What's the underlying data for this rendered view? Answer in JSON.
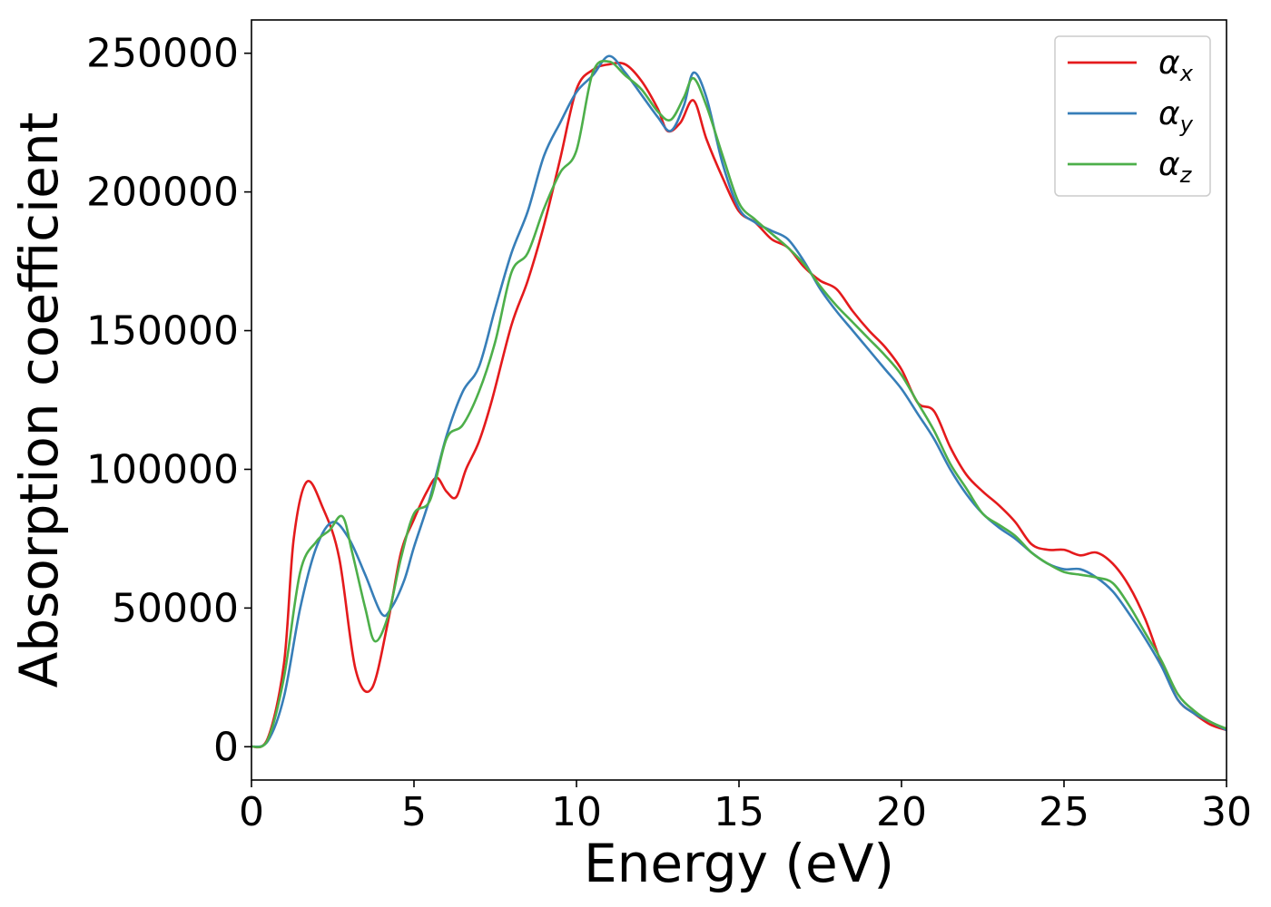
{
  "chart_data": {
    "type": "line",
    "title": "",
    "xlabel": "Energy (eV)",
    "ylabel": "Absorption coefficient",
    "xlim": [
      0,
      30
    ],
    "ylim": [
      -12000,
      262000
    ],
    "xticks": [
      0,
      5,
      10,
      15,
      20,
      25,
      30
    ],
    "yticks": [
      0,
      50000,
      100000,
      150000,
      200000,
      250000
    ],
    "grid": false,
    "legend_position": "top-right",
    "series": [
      {
        "name": "α",
        "subscript": "x",
        "color": "#e41a1c",
        "x": [
          0,
          0.5,
          1,
          1.3,
          1.7,
          2.2,
          2.7,
          3.2,
          3.7,
          4.2,
          4.6,
          5.0,
          5.4,
          5.7,
          6.0,
          6.3,
          6.6,
          7.0,
          7.4,
          8.0,
          8.5,
          9.0,
          9.5,
          10.0,
          10.5,
          11.0,
          11.5,
          12.0,
          12.5,
          12.8,
          13.2,
          13.6,
          14.0,
          14.5,
          15.0,
          15.5,
          16.0,
          16.5,
          17.0,
          17.5,
          18.0,
          18.5,
          19.0,
          19.5,
          20.0,
          20.5,
          21.0,
          21.5,
          22.0,
          22.5,
          23.0,
          23.5,
          24.0,
          24.5,
          25.0,
          25.5,
          26.0,
          26.5,
          27.0,
          27.5,
          28.0,
          28.5,
          29.0,
          29.5,
          30.0
        ],
        "values": [
          0,
          3000,
          30000,
          75000,
          95500,
          86000,
          68000,
          28000,
          21000,
          45000,
          70000,
          82000,
          92000,
          97000,
          92000,
          90000,
          100000,
          110000,
          125000,
          152000,
          168000,
          188000,
          212000,
          237000,
          244000,
          246000,
          246000,
          240000,
          230000,
          222000,
          225000,
          233000,
          219000,
          205000,
          193000,
          189000,
          183000,
          180000,
          173000,
          168000,
          165000,
          157000,
          150000,
          144000,
          136000,
          124000,
          121000,
          108000,
          98000,
          92000,
          87000,
          81000,
          73000,
          71000,
          71000,
          69000,
          70000,
          66000,
          58000,
          46000,
          30000,
          17000,
          12000,
          8000,
          6000
        ]
      },
      {
        "name": "α",
        "subscript": "y",
        "color": "#377eb8",
        "x": [
          0,
          0.5,
          1,
          1.5,
          2.0,
          2.5,
          3.0,
          3.5,
          4.0,
          4.3,
          4.7,
          5.0,
          5.5,
          6.0,
          6.5,
          7.0,
          7.5,
          8.0,
          8.5,
          9.0,
          9.5,
          10.0,
          10.5,
          11.0,
          11.5,
          12.0,
          12.5,
          12.9,
          13.3,
          13.6,
          14.0,
          14.5,
          15.0,
          15.5,
          16.0,
          16.5,
          17.0,
          17.5,
          18.0,
          18.5,
          19.0,
          19.5,
          20.0,
          20.5,
          21.0,
          21.5,
          22.0,
          22.5,
          23.0,
          23.5,
          24.0,
          24.5,
          25.0,
          25.5,
          26.0,
          26.5,
          27.0,
          27.5,
          28.0,
          28.5,
          29.0,
          29.5,
          30.0
        ],
        "values": [
          0,
          2000,
          18000,
          50000,
          72000,
          81000,
          75000,
          62000,
          48000,
          50000,
          60000,
          72000,
          90000,
          112000,
          128000,
          137000,
          158000,
          178000,
          193000,
          213000,
          225000,
          236000,
          242000,
          249000,
          243000,
          235000,
          227000,
          222000,
          231000,
          243000,
          234000,
          210000,
          194000,
          189000,
          186000,
          183000,
          175000,
          165000,
          157000,
          150000,
          143000,
          136000,
          129000,
          120000,
          111000,
          100000,
          91000,
          84000,
          79000,
          75000,
          70000,
          66000,
          64000,
          64000,
          61000,
          56000,
          48000,
          39000,
          29000,
          17000,
          12000,
          9000,
          6000
        ]
      },
      {
        "name": "α",
        "subscript": "z",
        "color": "#4daf4a",
        "x": [
          0,
          0.5,
          1,
          1.5,
          2.0,
          2.4,
          2.8,
          3.1,
          3.5,
          3.8,
          4.2,
          4.6,
          5.0,
          5.5,
          6.0,
          6.5,
          7.0,
          7.5,
          8.0,
          8.5,
          9.0,
          9.5,
          10.0,
          10.5,
          11.0,
          11.5,
          12.0,
          12.5,
          12.9,
          13.3,
          13.6,
          14.0,
          14.5,
          15.0,
          15.5,
          16.0,
          16.5,
          17.0,
          17.5,
          18.0,
          18.5,
          19.0,
          19.5,
          20.0,
          20.5,
          21.0,
          21.5,
          22.0,
          22.5,
          23.0,
          23.5,
          24.0,
          24.5,
          25.0,
          25.5,
          26.0,
          26.5,
          27.0,
          27.5,
          28.0,
          28.5,
          29.0,
          29.5,
          30.0
        ],
        "values": [
          0,
          2500,
          25000,
          63000,
          74000,
          78000,
          83000,
          70000,
          50000,
          38000,
          47000,
          68000,
          84000,
          89000,
          111000,
          116000,
          128000,
          146000,
          171000,
          178000,
          194000,
          207000,
          215000,
          243000,
          247000,
          242000,
          237000,
          229000,
          226000,
          234000,
          241000,
          231000,
          213000,
          196000,
          190000,
          185000,
          180000,
          174000,
          166000,
          159000,
          153000,
          147000,
          141000,
          134000,
          124000,
          114000,
          102000,
          93000,
          84000,
          80000,
          76000,
          70000,
          66000,
          63000,
          62000,
          61000,
          59000,
          51000,
          41000,
          31000,
          19000,
          13000,
          9000,
          6500
        ]
      }
    ]
  }
}
